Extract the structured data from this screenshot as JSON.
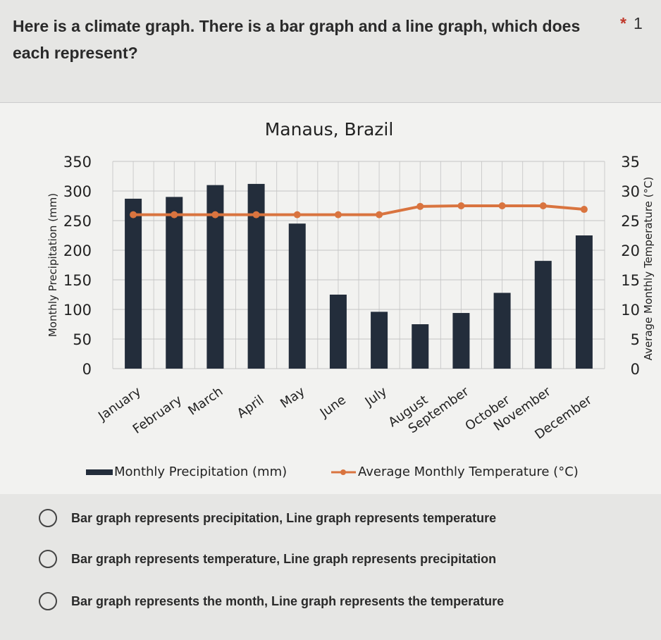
{
  "question": {
    "text": "Here is a climate graph. There is a bar graph and a line graph, which does each represent?",
    "required_marker": "*",
    "points": "1"
  },
  "options": [
    {
      "label": "Bar graph represents precipitation, Line graph represents temperature",
      "selected": false
    },
    {
      "label": "Bar graph represents temperature, Line graph represents precipitation",
      "selected": false
    },
    {
      "label": "Bar graph represents the month, Line graph represents the temperature",
      "selected": false
    }
  ],
  "chart_data": {
    "type": "bar+line",
    "title": "Manaus, Brazil",
    "categories": [
      "January",
      "February",
      "March",
      "April",
      "May",
      "June",
      "July",
      "August",
      "September",
      "October",
      "November",
      "December"
    ],
    "series": [
      {
        "name": "Monthly Precipitation (mm)",
        "type": "bar",
        "axis": "left",
        "color": "#232d3b",
        "values": [
          287,
          290,
          310,
          312,
          245,
          125,
          96,
          75,
          94,
          128,
          182,
          225
        ]
      },
      {
        "name": "Average Monthly Temperature (°C)",
        "type": "line",
        "axis": "right",
        "color": "#d9743f",
        "values": [
          26,
          26,
          26,
          26,
          26,
          26,
          26,
          27.4,
          27.5,
          27.5,
          27.5,
          26.9
        ]
      }
    ],
    "ylabel": "Monthly Precipitation (mm)",
    "y2label": "Average Monthly Temperature (°C)",
    "ylim": [
      0,
      350
    ],
    "yticks": [
      0,
      50,
      100,
      150,
      200,
      250,
      300,
      350
    ],
    "y2lim": [
      0,
      35
    ],
    "y2ticks": [
      0,
      5,
      10,
      15,
      20,
      25,
      30,
      35
    ],
    "grid": true,
    "legend": "bottom"
  }
}
